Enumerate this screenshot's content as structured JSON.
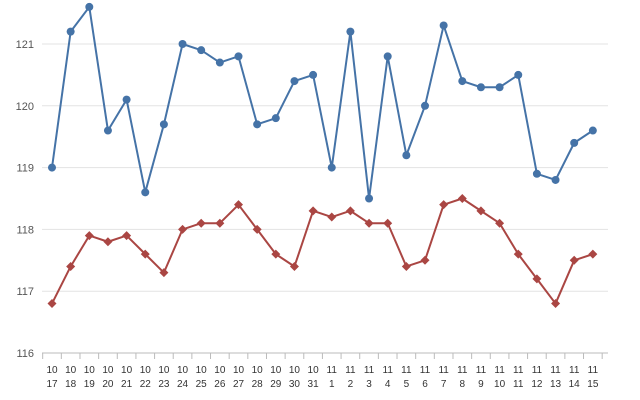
{
  "chart_data": {
    "type": "line",
    "categories": [
      [
        "10",
        "17"
      ],
      [
        "10",
        "18"
      ],
      [
        "10",
        "19"
      ],
      [
        "10",
        "20"
      ],
      [
        "10",
        "21"
      ],
      [
        "10",
        "22"
      ],
      [
        "10",
        "23"
      ],
      [
        "10",
        "24"
      ],
      [
        "10",
        "25"
      ],
      [
        "10",
        "26"
      ],
      [
        "10",
        "27"
      ],
      [
        "10",
        "28"
      ],
      [
        "10",
        "29"
      ],
      [
        "10",
        "30"
      ],
      [
        "10",
        "31"
      ],
      [
        "11",
        "1"
      ],
      [
        "11",
        "2"
      ],
      [
        "11",
        "3"
      ],
      [
        "11",
        "4"
      ],
      [
        "11",
        "5"
      ],
      [
        "11",
        "6"
      ],
      [
        "11",
        "7"
      ],
      [
        "11",
        "8"
      ],
      [
        "11",
        "9"
      ],
      [
        "11",
        "10"
      ],
      [
        "11",
        "11"
      ],
      [
        "11",
        "12"
      ],
      [
        "11",
        "13"
      ],
      [
        "11",
        "14"
      ],
      [
        "11",
        "15"
      ]
    ],
    "y_ticks": [
      "116",
      "117",
      "118",
      "119",
      "120",
      "121"
    ],
    "ylim": [
      116,
      121.8
    ],
    "grid": true,
    "series": [
      {
        "color": "#4573a7",
        "marker": "circle",
        "values": [
          119.0,
          121.2,
          121.6,
          119.6,
          120.1,
          118.6,
          119.7,
          121.0,
          120.9,
          120.7,
          120.8,
          119.7,
          119.8,
          120.4,
          120.5,
          119.0,
          121.2,
          118.5,
          120.8,
          119.2,
          120.0,
          121.3,
          120.4,
          120.3,
          120.3,
          120.5,
          118.9,
          118.8,
          119.4,
          119.6
        ]
      },
      {
        "color": "#aa4643",
        "marker": "diamond",
        "values": [
          116.8,
          117.4,
          117.9,
          117.8,
          117.9,
          117.6,
          117.3,
          118.0,
          118.1,
          118.1,
          118.4,
          118.0,
          117.6,
          117.4,
          118.3,
          118.2,
          118.3,
          118.1,
          118.1,
          117.4,
          117.5,
          118.4,
          118.5,
          118.3,
          118.1,
          117.6,
          117.2,
          116.8,
          117.5,
          117.6
        ]
      }
    ]
  }
}
